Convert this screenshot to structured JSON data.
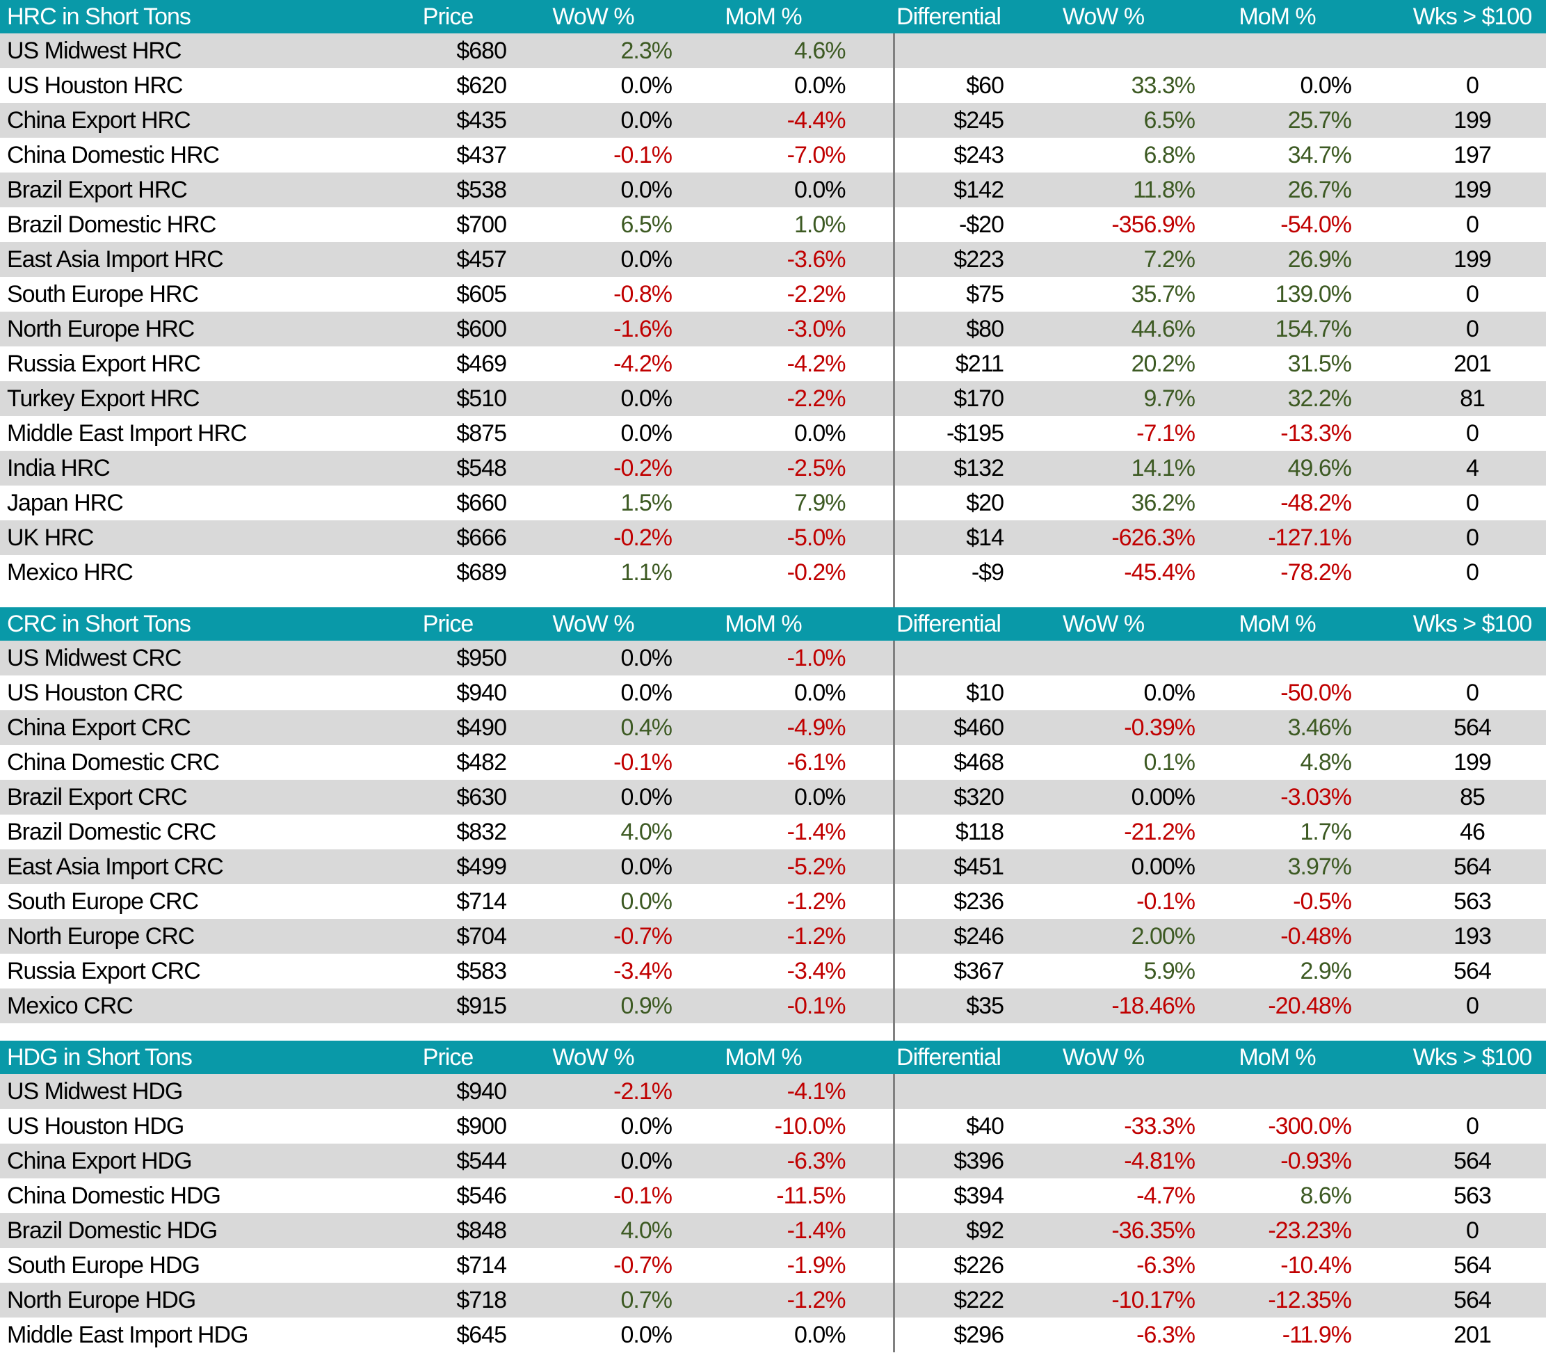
{
  "colors": {
    "header_bg": "#0999A8",
    "header_text": "#FFFFFF",
    "row_alt_bg": "#D9D9D9",
    "row_bg": "#FFFFFF",
    "positive_green": "#3D5A23",
    "negative_red": "#C00000",
    "neutral_black": "#000000",
    "divider_line": "#808080"
  },
  "chart_data": [
    {
      "type": "table",
      "title": "HRC in Short Tons",
      "columns": [
        "Price",
        "WoW %",
        "MoM %",
        "Differential",
        "WoW %",
        "MoM %",
        "Wks > $100"
      ],
      "rows": [
        {
          "label": "US Midwest HRC",
          "values": [
            "$680",
            "2.3%",
            "4.6%",
            "",
            "",
            "",
            ""
          ],
          "colors": [
            "k",
            "g",
            "g",
            "",
            "",
            "",
            ""
          ]
        },
        {
          "label": "US Houston HRC",
          "values": [
            "$620",
            "0.0%",
            "0.0%",
            "$60",
            "33.3%",
            "0.0%",
            "0"
          ],
          "colors": [
            "k",
            "k",
            "k",
            "k",
            "g",
            "k",
            "k"
          ]
        },
        {
          "label": "China Export HRC",
          "values": [
            "$435",
            "0.0%",
            "-4.4%",
            "$245",
            "6.5%",
            "25.7%",
            "199"
          ],
          "colors": [
            "k",
            "k",
            "r",
            "k",
            "g",
            "g",
            "k"
          ]
        },
        {
          "label": "China Domestic HRC",
          "values": [
            "$437",
            "-0.1%",
            "-7.0%",
            "$243",
            "6.8%",
            "34.7%",
            "197"
          ],
          "colors": [
            "k",
            "r",
            "r",
            "k",
            "g",
            "g",
            "k"
          ]
        },
        {
          "label": "Brazil Export HRC",
          "values": [
            "$538",
            "0.0%",
            "0.0%",
            "$142",
            "11.8%",
            "26.7%",
            "199"
          ],
          "colors": [
            "k",
            "k",
            "k",
            "k",
            "g",
            "g",
            "k"
          ]
        },
        {
          "label": "Brazil Domestic HRC",
          "values": [
            "$700",
            "6.5%",
            "1.0%",
            "-$20",
            "-356.9%",
            "-54.0%",
            "0"
          ],
          "colors": [
            "k",
            "g",
            "g",
            "k",
            "r",
            "r",
            "k"
          ]
        },
        {
          "label": "East Asia Import HRC",
          "values": [
            "$457",
            "0.0%",
            "-3.6%",
            "$223",
            "7.2%",
            "26.9%",
            "199"
          ],
          "colors": [
            "k",
            "k",
            "r",
            "k",
            "g",
            "g",
            "k"
          ]
        },
        {
          "label": "South Europe HRC",
          "values": [
            "$605",
            "-0.8%",
            "-2.2%",
            "$75",
            "35.7%",
            "139.0%",
            "0"
          ],
          "colors": [
            "k",
            "r",
            "r",
            "k",
            "g",
            "g",
            "k"
          ]
        },
        {
          "label": "North Europe HRC",
          "values": [
            "$600",
            "-1.6%",
            "-3.0%",
            "$80",
            "44.6%",
            "154.7%",
            "0"
          ],
          "colors": [
            "k",
            "r",
            "r",
            "k",
            "g",
            "g",
            "k"
          ]
        },
        {
          "label": "Russia Export HRC",
          "values": [
            "$469",
            "-4.2%",
            "-4.2%",
            "$211",
            "20.2%",
            "31.5%",
            "201"
          ],
          "colors": [
            "k",
            "r",
            "r",
            "k",
            "g",
            "g",
            "k"
          ]
        },
        {
          "label": "Turkey Export HRC",
          "values": [
            "$510",
            "0.0%",
            "-2.2%",
            "$170",
            "9.7%",
            "32.2%",
            "81"
          ],
          "colors": [
            "k",
            "k",
            "r",
            "k",
            "g",
            "g",
            "k"
          ]
        },
        {
          "label": "Middle East Import HRC",
          "values": [
            "$875",
            "0.0%",
            "0.0%",
            "-$195",
            "-7.1%",
            "-13.3%",
            "0"
          ],
          "colors": [
            "k",
            "k",
            "k",
            "k",
            "r",
            "r",
            "k"
          ]
        },
        {
          "label": "India HRC",
          "values": [
            "$548",
            "-0.2%",
            "-2.5%",
            "$132",
            "14.1%",
            "49.6%",
            "4"
          ],
          "colors": [
            "k",
            "r",
            "r",
            "k",
            "g",
            "g",
            "k"
          ]
        },
        {
          "label": "Japan HRC",
          "values": [
            "$660",
            "1.5%",
            "7.9%",
            "$20",
            "36.2%",
            "-48.2%",
            "0"
          ],
          "colors": [
            "k",
            "g",
            "g",
            "k",
            "g",
            "r",
            "k"
          ]
        },
        {
          "label": "UK HRC",
          "values": [
            "$666",
            "-0.2%",
            "-5.0%",
            "$14",
            "-626.3%",
            "-127.1%",
            "0"
          ],
          "colors": [
            "k",
            "r",
            "r",
            "k",
            "r",
            "r",
            "k"
          ]
        },
        {
          "label": "Mexico HRC",
          "values": [
            "$689",
            "1.1%",
            "-0.2%",
            "-$9",
            "-45.4%",
            "-78.2%",
            "0"
          ],
          "colors": [
            "k",
            "g",
            "r",
            "k",
            "r",
            "r",
            "k"
          ]
        }
      ]
    },
    {
      "type": "table",
      "title": "CRC in Short Tons",
      "columns": [
        "Price",
        "WoW %",
        "MoM %",
        "Differential",
        "WoW %",
        "MoM %",
        "Wks > $100"
      ],
      "rows": [
        {
          "label": "US Midwest CRC",
          "values": [
            "$950",
            "0.0%",
            "-1.0%",
            "",
            "",
            "",
            ""
          ],
          "colors": [
            "k",
            "k",
            "r",
            "",
            "",
            "",
            ""
          ]
        },
        {
          "label": "US Houston CRC",
          "values": [
            "$940",
            "0.0%",
            "0.0%",
            "$10",
            "0.0%",
            "-50.0%",
            "0"
          ],
          "colors": [
            "k",
            "k",
            "k",
            "k",
            "k",
            "r",
            "k"
          ]
        },
        {
          "label": "China Export CRC",
          "values": [
            "$490",
            "0.4%",
            "-4.9%",
            "$460",
            "-0.39%",
            "3.46%",
            "564"
          ],
          "colors": [
            "k",
            "g",
            "r",
            "k",
            "r",
            "g",
            "k"
          ]
        },
        {
          "label": "China Domestic CRC",
          "values": [
            "$482",
            "-0.1%",
            "-6.1%",
            "$468",
            "0.1%",
            "4.8%",
            "199"
          ],
          "colors": [
            "k",
            "r",
            "r",
            "k",
            "g",
            "g",
            "k"
          ]
        },
        {
          "label": "Brazil Export CRC",
          "values": [
            "$630",
            "0.0%",
            "0.0%",
            "$320",
            "0.00%",
            "-3.03%",
            "85"
          ],
          "colors": [
            "k",
            "k",
            "k",
            "k",
            "k",
            "r",
            "k"
          ]
        },
        {
          "label": "Brazil Domestic CRC",
          "values": [
            "$832",
            "4.0%",
            "-1.4%",
            "$118",
            "-21.2%",
            "1.7%",
            "46"
          ],
          "colors": [
            "k",
            "g",
            "r",
            "k",
            "r",
            "g",
            "k"
          ]
        },
        {
          "label": "East Asia Import CRC",
          "values": [
            "$499",
            "0.0%",
            "-5.2%",
            "$451",
            "0.00%",
            "3.97%",
            "564"
          ],
          "colors": [
            "k",
            "k",
            "r",
            "k",
            "k",
            "g",
            "k"
          ]
        },
        {
          "label": "South Europe CRC",
          "values": [
            "$714",
            "0.0%",
            "-1.2%",
            "$236",
            "-0.1%",
            "-0.5%",
            "563"
          ],
          "colors": [
            "k",
            "g",
            "r",
            "k",
            "r",
            "r",
            "k"
          ]
        },
        {
          "label": "North Europe CRC",
          "values": [
            "$704",
            "-0.7%",
            "-1.2%",
            "$246",
            "2.00%",
            "-0.48%",
            "193"
          ],
          "colors": [
            "k",
            "r",
            "r",
            "k",
            "g",
            "r",
            "k"
          ]
        },
        {
          "label": "Russia Export CRC",
          "values": [
            "$583",
            "-3.4%",
            "-3.4%",
            "$367",
            "5.9%",
            "2.9%",
            "564"
          ],
          "colors": [
            "k",
            "r",
            "r",
            "k",
            "g",
            "g",
            "k"
          ]
        },
        {
          "label": "Mexico CRC",
          "values": [
            "$915",
            "0.9%",
            "-0.1%",
            "$35",
            "-18.46%",
            "-20.48%",
            "0"
          ],
          "colors": [
            "k",
            "g",
            "r",
            "k",
            "r",
            "r",
            "k"
          ]
        }
      ]
    },
    {
      "type": "table",
      "title": "HDG in Short Tons",
      "columns": [
        "Price",
        "WoW %",
        "MoM %",
        "Differential",
        "WoW %",
        "MoM %",
        "Wks > $100"
      ],
      "rows": [
        {
          "label": "US Midwest HDG",
          "values": [
            "$940",
            "-2.1%",
            "-4.1%",
            "",
            "",
            "",
            ""
          ],
          "colors": [
            "k",
            "r",
            "r",
            "",
            "",
            "",
            ""
          ]
        },
        {
          "label": "US Houston HDG",
          "values": [
            "$900",
            "0.0%",
            "-10.0%",
            "$40",
            "-33.3%",
            "-300.0%",
            "0"
          ],
          "colors": [
            "k",
            "k",
            "r",
            "k",
            "r",
            "r",
            "k"
          ]
        },
        {
          "label": "China Export HDG",
          "values": [
            "$544",
            "0.0%",
            "-6.3%",
            "$396",
            "-4.81%",
            "-0.93%",
            "564"
          ],
          "colors": [
            "k",
            "k",
            "r",
            "k",
            "r",
            "r",
            "k"
          ]
        },
        {
          "label": "China Domestic HDG",
          "values": [
            "$546",
            "-0.1%",
            "-11.5%",
            "$394",
            "-4.7%",
            "8.6%",
            "563"
          ],
          "colors": [
            "k",
            "r",
            "r",
            "k",
            "r",
            "g",
            "k"
          ]
        },
        {
          "label": "Brazil Domestic HDG",
          "values": [
            "$848",
            "4.0%",
            "-1.4%",
            "$92",
            "-36.35%",
            "-23.23%",
            "0"
          ],
          "colors": [
            "k",
            "g",
            "r",
            "k",
            "r",
            "r",
            "k"
          ]
        },
        {
          "label": "South Europe HDG",
          "values": [
            "$714",
            "-0.7%",
            "-1.9%",
            "$226",
            "-6.3%",
            "-10.4%",
            "564"
          ],
          "colors": [
            "k",
            "r",
            "r",
            "k",
            "r",
            "r",
            "k"
          ]
        },
        {
          "label": "North Europe HDG",
          "values": [
            "$718",
            "0.7%",
            "-1.2%",
            "$222",
            "-10.17%",
            "-12.35%",
            "564"
          ],
          "colors": [
            "k",
            "g",
            "r",
            "k",
            "r",
            "r",
            "k"
          ]
        },
        {
          "label": "Middle East Import HDG",
          "values": [
            "$645",
            "0.0%",
            "0.0%",
            "$296",
            "-6.3%",
            "-11.9%",
            "201"
          ],
          "colors": [
            "k",
            "k",
            "k",
            "k",
            "r",
            "r",
            "k"
          ]
        }
      ]
    }
  ]
}
